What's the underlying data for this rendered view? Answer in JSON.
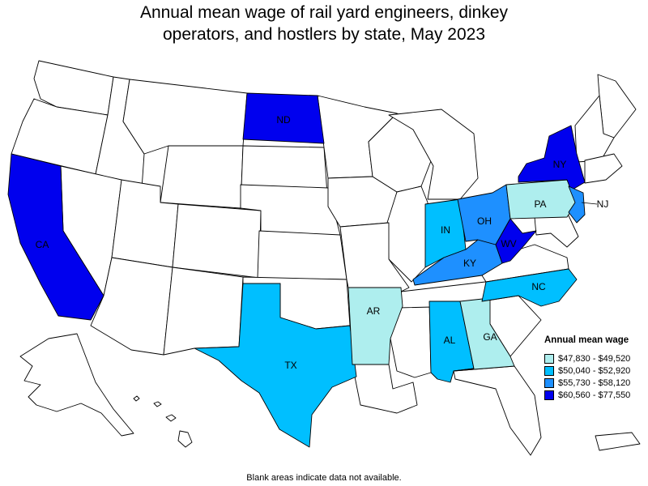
{
  "title": "Annual mean wage of rail yard engineers, dinkey operators, and hostlers by state, May 2023",
  "title_lines": [
    "Annual mean wage of rail yard engineers, dinkey",
    "operators, and hostlers by state, May 2023"
  ],
  "legend": {
    "title": "Annual mean wage",
    "bins": [
      {
        "label": "$47,830 - $49,520",
        "color": "#aeeeee"
      },
      {
        "label": "$50,040 - $52,920",
        "color": "#00bfff"
      },
      {
        "label": "$55,730 - $58,120",
        "color": "#1e90ff"
      },
      {
        "label": "$60,560 - $77,550",
        "color": "#0000ee"
      }
    ]
  },
  "colors": {
    "no_data": "#ffffff",
    "border": "#000000"
  },
  "states": [
    {
      "abbr": "CA",
      "bin": 3
    },
    {
      "abbr": "ND",
      "bin": 3
    },
    {
      "abbr": "NY",
      "bin": 3
    },
    {
      "abbr": "WV",
      "bin": 3
    },
    {
      "abbr": "OH",
      "bin": 2
    },
    {
      "abbr": "KY",
      "bin": 2
    },
    {
      "abbr": "NJ",
      "bin": 2
    },
    {
      "abbr": "IN",
      "bin": 1
    },
    {
      "abbr": "TX",
      "bin": 1
    },
    {
      "abbr": "NC",
      "bin": 1
    },
    {
      "abbr": "AL",
      "bin": 1
    },
    {
      "abbr": "PA",
      "bin": 0
    },
    {
      "abbr": "AR",
      "bin": 0
    },
    {
      "abbr": "GA",
      "bin": 0
    }
  ],
  "footnote": "Blank areas indicate data not available."
}
